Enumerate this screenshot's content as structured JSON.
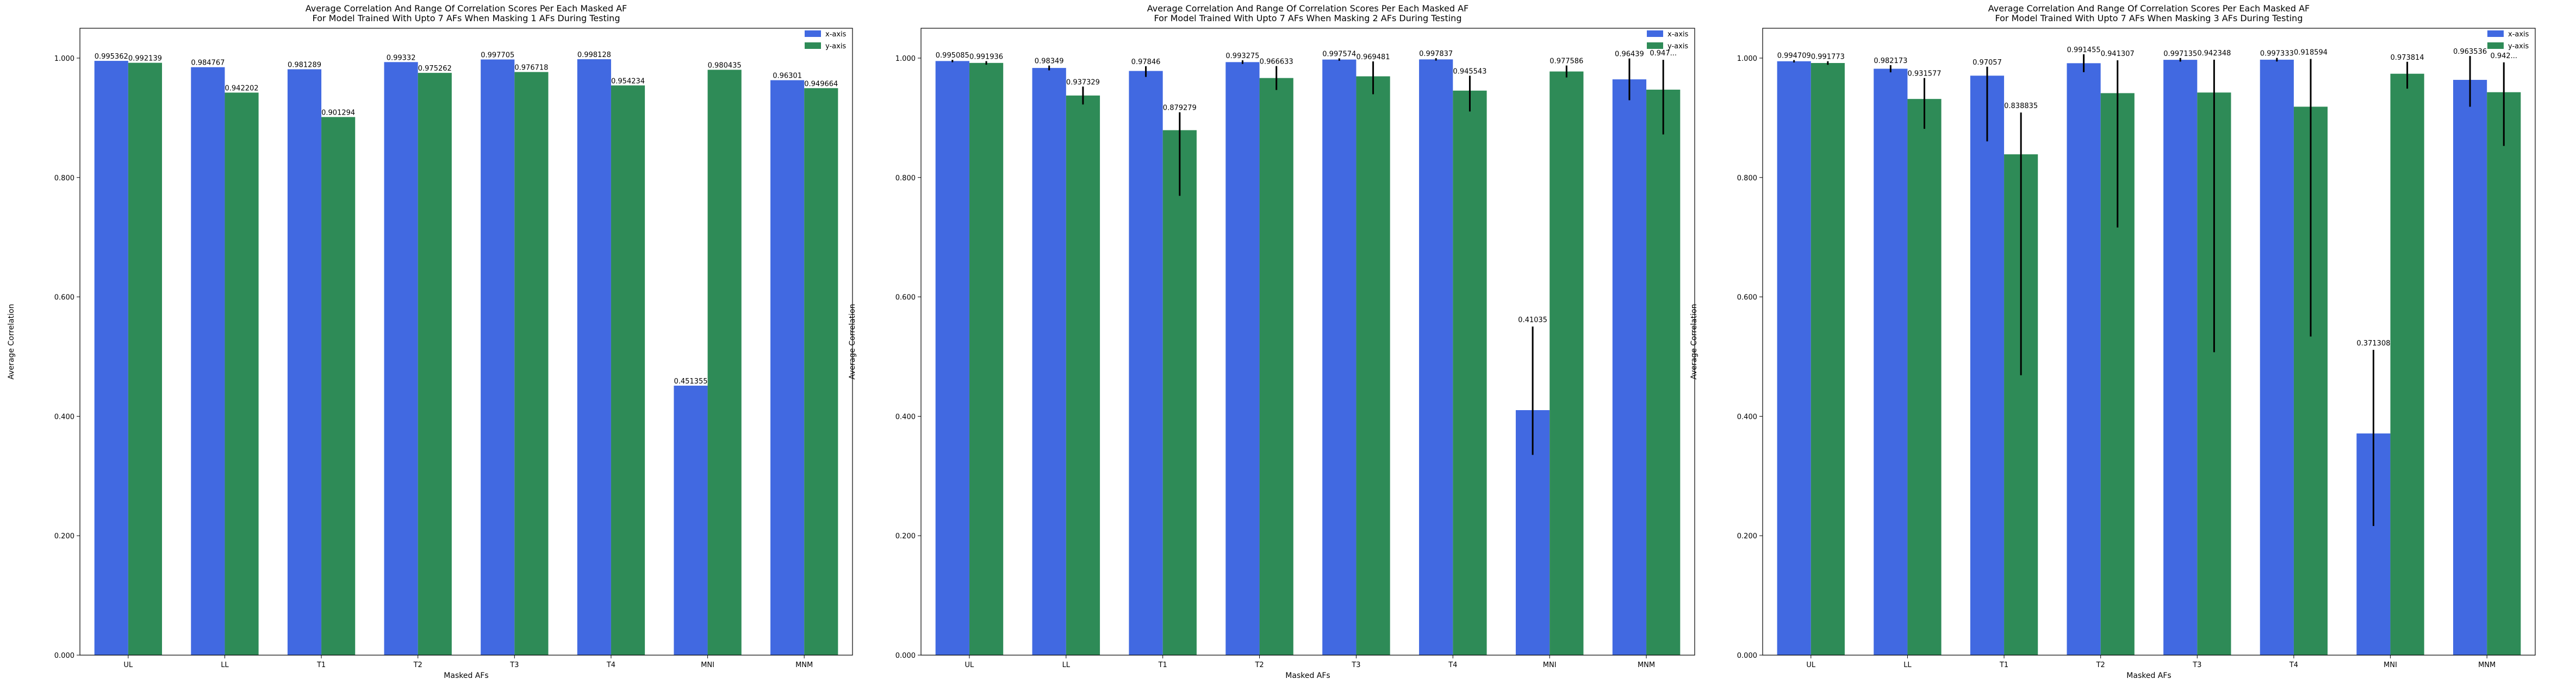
{
  "chart_data": [
    {
      "type": "bar",
      "title": [
        "Average Correlation And Range Of Correlation Scores Per Each Masked AF",
        "For Model Trained With Upto 7 AFs When Masking 1 AFs During Testing"
      ],
      "xlabel": "Masked AFs",
      "ylabel": "Average Correlation",
      "ylim": [
        0,
        1.05
      ],
      "yticks": [
        "0.000",
        "0.200",
        "0.400",
        "0.600",
        "0.800",
        "1.000"
      ],
      "legend_position": "top-right",
      "categories": [
        "UL",
        "LL",
        "T1",
        "T2",
        "T3",
        "T4",
        "MNI",
        "MNM"
      ],
      "series": [
        {
          "name": "x-axis",
          "color": "#4169e1",
          "values": [
            0.995362,
            0.984767,
            0.981289,
            0.99332,
            0.997705,
            0.998128,
            0.451355,
            0.96301
          ],
          "labels": [
            "0.995362",
            "0.984767",
            "0.981289",
            "0.99332",
            "0.997705",
            "0.998128",
            "0.451355",
            "0.96301"
          ],
          "err_low": [
            0,
            0,
            0,
            0,
            0,
            0,
            0,
            0
          ],
          "err_high": [
            0,
            0,
            0,
            0,
            0,
            0,
            0,
            0
          ]
        },
        {
          "name": "y-axis",
          "color": "#2e8b57",
          "values": [
            0.992139,
            0.942202,
            0.901294,
            0.975262,
            0.976718,
            0.954234,
            0.980435,
            0.949664
          ],
          "labels": [
            "0.992139",
            "0.942202",
            "0.901294",
            "0.975262",
            "0.976718",
            "0.954234",
            "0.980435",
            "0.949664"
          ],
          "err_low": [
            0,
            0,
            0,
            0,
            0,
            0,
            0,
            0
          ],
          "err_high": [
            0,
            0,
            0,
            0,
            0,
            0,
            0,
            0
          ]
        }
      ]
    },
    {
      "type": "bar",
      "title": [
        "Average Correlation And Range Of Correlation Scores Per Each Masked AF",
        "For Model Trained With Upto 7 AFs When Masking 2 AFs During Testing"
      ],
      "xlabel": "Masked AFs",
      "ylabel": "Average Correlation",
      "ylim": [
        0,
        1.05
      ],
      "yticks": [
        "0.000",
        "0.200",
        "0.400",
        "0.600",
        "0.800",
        "1.000"
      ],
      "legend_position": "top-right",
      "categories": [
        "UL",
        "LL",
        "T1",
        "T2",
        "T3",
        "T4",
        "MNI",
        "MNM"
      ],
      "series": [
        {
          "name": "x-axis",
          "color": "#4169e1",
          "values": [
            0.995085,
            0.98349,
            0.97846,
            0.993275,
            0.997574,
            0.997837,
            0.41035,
            0.96439
          ],
          "labels": [
            "0.995085",
            "0.98349",
            "0.97846",
            "0.993275",
            "0.997574",
            "0.997837",
            "0.41035",
            "0.96439"
          ],
          "err_low": [
            0.002,
            0.004,
            0.01,
            0.003,
            0.002,
            0.002,
            0.075,
            0.035
          ],
          "err_high": [
            0.002,
            0.004,
            0.008,
            0.003,
            0.002,
            0.002,
            0.14,
            0.035
          ]
        },
        {
          "name": "y-axis",
          "color": "#2e8b57",
          "values": [
            0.991936,
            0.937329,
            0.879279,
            0.966633,
            0.969481,
            0.945543,
            0.977586,
            0.947165
          ],
          "labels": [
            "0.991936",
            "0.937329",
            "0.879279",
            "0.966633",
            "0.969481",
            "0.945543",
            "0.977586",
            "0.947..."
          ],
          "err_low": [
            0.003,
            0.015,
            0.11,
            0.02,
            0.03,
            0.035,
            0.01,
            0.075
          ],
          "err_high": [
            0.003,
            0.015,
            0.03,
            0.02,
            0.025,
            0.025,
            0.01,
            0.05
          ]
        }
      ]
    },
    {
      "type": "bar",
      "title": [
        "Average Correlation And Range Of Correlation Scores Per Each Masked AF",
        "For Model Trained With Upto 7 AFs When Masking 3 AFs During Testing"
      ],
      "xlabel": "Masked AFs",
      "ylabel": "Average Correlation",
      "ylim": [
        0,
        1.05
      ],
      "yticks": [
        "0.000",
        "0.200",
        "0.400",
        "0.600",
        "0.800",
        "1.000"
      ],
      "legend_position": "top-right",
      "categories": [
        "UL",
        "LL",
        "T1",
        "T2",
        "T3",
        "T4",
        "MNI",
        "MNM"
      ],
      "series": [
        {
          "name": "x-axis",
          "color": "#4169e1",
          "values": [
            0.994709,
            0.982173,
            0.97057,
            0.991455,
            0.997135,
            0.997333,
            0.371308,
            0.963536
          ],
          "labels": [
            "0.994709",
            "0.982173",
            "0.97057",
            "0.991455",
            "0.997135",
            "0.997333",
            "0.371308",
            "0.963536"
          ],
          "err_low": [
            0.002,
            0.006,
            0.11,
            0.015,
            0.003,
            0.003,
            0.155,
            0.045
          ],
          "err_high": [
            0.002,
            0.006,
            0.015,
            0.015,
            0.003,
            0.003,
            0.14,
            0.04
          ]
        },
        {
          "name": "y-axis",
          "color": "#2e8b57",
          "values": [
            0.991773,
            0.931577,
            0.838835,
            0.941307,
            0.942348,
            0.918594,
            0.973814,
            0.942865
          ],
          "labels": [
            "0.991773",
            "0.931577",
            "0.838835",
            "0.941307",
            "0.942348",
            "0.918594",
            "0.973814",
            "0.942..."
          ],
          "err_low": [
            0.003,
            0.05,
            0.37,
            0.225,
            0.435,
            0.385,
            0.025,
            0.09
          ],
          "err_high": [
            0.003,
            0.035,
            0.07,
            0.055,
            0.055,
            0.08,
            0.02,
            0.05
          ]
        }
      ]
    }
  ]
}
